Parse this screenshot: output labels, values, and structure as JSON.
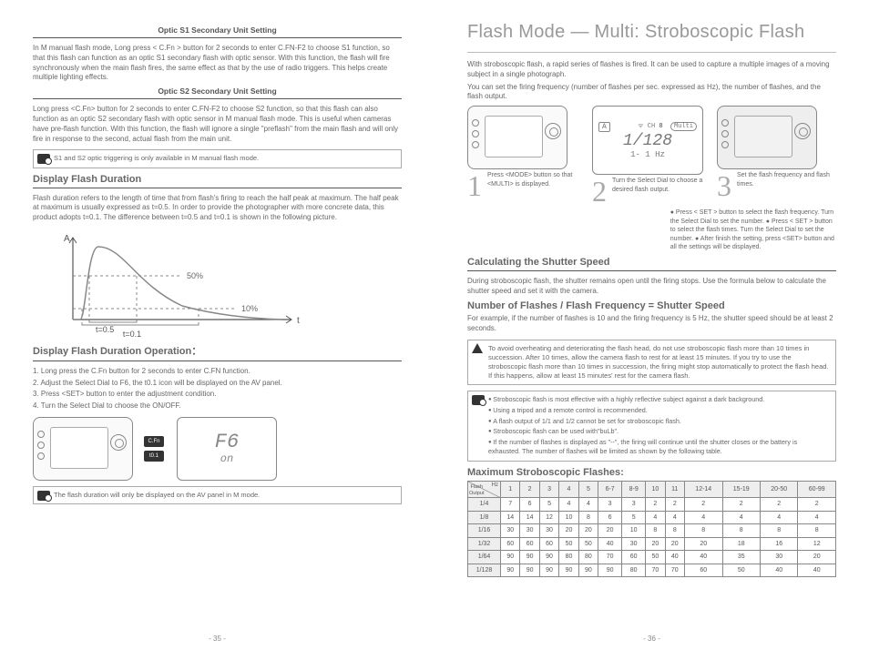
{
  "left": {
    "optic_s1_title": "Optic S1 Secondary Unit Setting",
    "optic_s1_body": "In M manual flash mode, Long press < C.Fn > button for 2 seconds to enter C.FN-F2 to choose S1 function, so that this flash can function as an optic S1 secondary flash with optic sensor. With this function, the flash will fire synchronously when the main flash fires, the same effect as that by the use of radio triggers. This helps create multiple lighting effects.",
    "optic_s2_title": "Optic S2 Secondary Unit Setting",
    "optic_s2_body": "Long press <C.Fn> button for 2 seconds to enter C.FN-F2 to choose S2 function, so that this flash can also function as an optic S2 secondary flash with optic sensor in M manual flash mode. This is useful when cameras have pre-flash function. With this function, the flash will ignore a single \"preflash\" from the main flash and will only fire in response to the second, actual flash from the main unit.",
    "note1": "S1 and S2 optic triggering is only available in M manual flash mode.",
    "dfd_heading": "Display Flash Duration",
    "dfd_body": "Flash duration refers to the length of time that from flash's firing to reach the half peak at maximum. The half peak at maximum is usually expressed as t=0.5. In order to provide the photographer with more concrete data, this product adopts t=0.1. The difference between t=0.5 and t=0.1 is shown in the following picture.",
    "chart": {
      "y_axis": "A",
      "x_axis": "t",
      "label50": "50%",
      "label10": "10%",
      "t05": "t=0.5",
      "t01": "t=0.1",
      "curve_color": "#888",
      "dash_color": "#888"
    },
    "op_heading": "Display Flash Duration Operation：",
    "op_steps": [
      "1. Long press the C.Fn button for 2 seconds to enter C.FN function.",
      "2. Adjust the Select Dial to F6, the t0.1 icon will be displayed on the AV panel.",
      "3. Press <SET> button to enter the adjustment condition.",
      "4. Turn the Select Dial to choose the ON/OFF."
    ],
    "lcd_big": "F6",
    "lcd_small": "on",
    "cfn_label1": "C.Fn",
    "cfn_label2": "t0.1",
    "note2": "The flash duration will only be displayed on the AV panel in M mode.",
    "page_num": "-  35  -"
  },
  "right": {
    "title": "Flash Mode — Multi: Stroboscopic Flash",
    "intro1": "With stroboscopic flash, a rapid series of flashes is fired. It can be used to capture a multiple images of a moving subject in a single photograph.",
    "intro2": "You can set the firing frequency (number of flashes per sec. expressed as Hz), the number of flashes, and the flash output.",
    "fig1_cap": "Press <MODE> button so that <MULTI> is displayed.",
    "fig2_cap": "Turn the Select Dial to choose a desired flash output.",
    "fig3_cap": "Set the flash frequency and flash times.",
    "lcd_disp": "1/128",
    "lcd_sub": "1-   1 Hz",
    "lcd_badge": "Multi",
    "lcd_a": "A",
    "side_note": "●  Press < SET > button to select the flash frequency. Turn the Select Dial to set the number.    ●  Press < SET > button to select the flash times. Turn the Select Dial to set the number.    ●  After finish the setting, press <SET> button and all the settings will be displayed.",
    "calc_heading": "Calculating the Shutter Speed",
    "calc_body": "During stroboscopic flash, the shutter remains open until the firing stops. Use the formula below to calculate the shutter speed and set it with the camera.",
    "formula_heading": "Number of Flashes / Flash Frequency = Shutter Speed",
    "formula_body": "For example, if the number of flashes is 10 and the firing frequency is 5 Hz, the shutter speed should be at least 2 seconds.",
    "warn": "To avoid overheating and deteriorating the flash head, do not use stroboscopic flash more than 10 times in succession. After 10 times, allow the camera flash to rest for at least 15 minutes. If you try to use the stroboscopic flash more than 10 times in succession, the firing might stop automatically to protect the flash head. If this happens, allow at least 15 minutes' rest for the camera flash.",
    "tips": [
      "Stroboscopic flash is most effective with a highly reflective subject against a dark background.",
      "Using a tripod and a remote control is recommended.",
      "A flash output of 1/1 and 1/2 cannot be set for stroboscopic flash.",
      "Stroboscopic flash can be used with\"buLb\".",
      "If the number of flashes is displayed as \"--\", the firing will continue until the shutter closes or the battery is exhausted. The number of flashes will be limited as shown by the following table."
    ],
    "table_heading": "Maximum Stroboscopic Flashes:",
    "table": {
      "corner_top": "Hz",
      "corner_bottom": "Flash Output",
      "hz": [
        "1",
        "2",
        "3",
        "4",
        "5",
        "6-7",
        "8-9",
        "10",
        "11",
        "12-14",
        "15-19",
        "20-50",
        "60-99"
      ],
      "rows": [
        {
          "h": "1/4",
          "v": [
            7,
            6,
            5,
            4,
            4,
            3,
            3,
            2,
            2,
            2,
            2,
            2,
            2
          ]
        },
        {
          "h": "1/8",
          "v": [
            14,
            14,
            12,
            10,
            8,
            6,
            5,
            4,
            4,
            4,
            4,
            4,
            4
          ]
        },
        {
          "h": "1/16",
          "v": [
            30,
            30,
            30,
            20,
            20,
            20,
            10,
            8,
            8,
            8,
            8,
            8,
            8
          ]
        },
        {
          "h": "1/32",
          "v": [
            60,
            60,
            60,
            50,
            50,
            40,
            30,
            20,
            20,
            20,
            18,
            16,
            12
          ]
        },
        {
          "h": "1/64",
          "v": [
            90,
            90,
            90,
            80,
            80,
            70,
            60,
            50,
            40,
            40,
            35,
            30,
            20
          ]
        },
        {
          "h": "1/128",
          "v": [
            90,
            90,
            90,
            90,
            90,
            90,
            80,
            70,
            70,
            60,
            50,
            40,
            40
          ]
        }
      ]
    },
    "page_num": "-  36  -"
  }
}
